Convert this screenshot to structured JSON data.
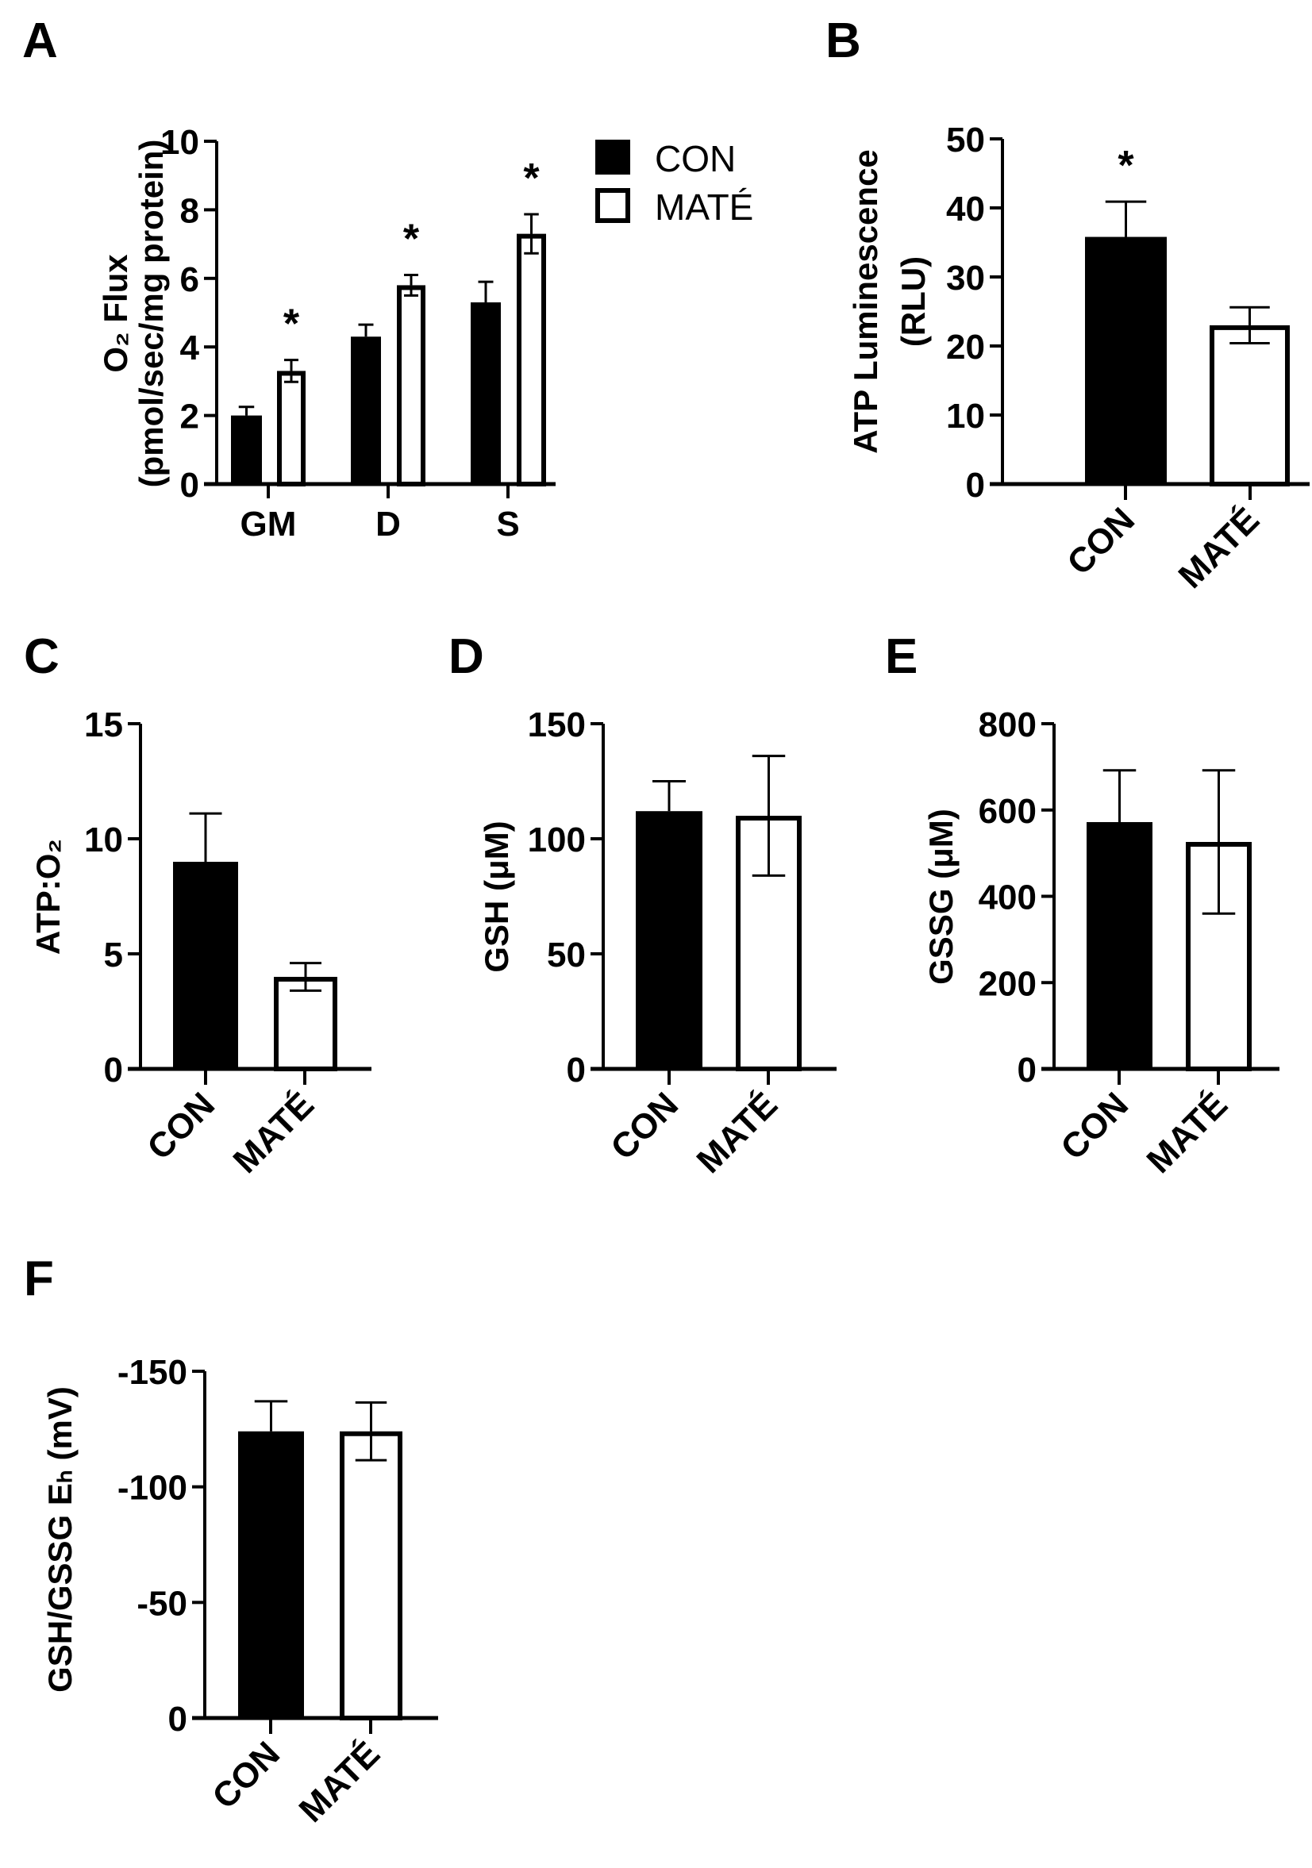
{
  "figure": {
    "legend": {
      "items": [
        {
          "label": "CON",
          "fill": "#000000"
        },
        {
          "label": "MATÉ",
          "fill": "#ffffff"
        }
      ]
    },
    "colors": {
      "con": "#000000",
      "mate": "#ffffff",
      "stroke": "#000000"
    }
  },
  "chart_data": [
    {
      "id": "A",
      "panel_label": "A",
      "type": "bar",
      "title": "",
      "ylabel_lines": [
        "O₂ Flux",
        "(pmol/sec/mg protein)"
      ],
      "xlabel": "",
      "categories": [
        "GM",
        "D",
        "S"
      ],
      "ylim": [
        0,
        10
      ],
      "yticks": [
        0,
        2,
        4,
        6,
        8,
        10
      ],
      "ytick_labels": [
        "0",
        "2",
        "4",
        "6",
        "8",
        "10"
      ],
      "legend_position": "upper right",
      "grid": false,
      "series": [
        {
          "name": "CON",
          "values": [
            2.0,
            4.3,
            5.3
          ],
          "error": [
            0.25,
            0.35,
            0.6
          ],
          "significant": [
            false,
            false,
            false
          ]
        },
        {
          "name": "MATÉ",
          "values": [
            3.3,
            5.8,
            7.3
          ],
          "error": [
            0.32,
            0.3,
            0.57
          ],
          "significant": [
            true,
            true,
            true
          ]
        }
      ],
      "annotations": [
        "*",
        "*",
        "*"
      ]
    },
    {
      "id": "B",
      "panel_label": "B",
      "type": "bar",
      "title": "",
      "ylabel_lines": [
        "ATP Luminescence",
        "(RLU)"
      ],
      "categories": [
        "CON",
        "MATÉ"
      ],
      "ylim": [
        0,
        50
      ],
      "yticks": [
        0,
        10,
        20,
        30,
        40,
        50
      ],
      "ytick_labels": [
        "0",
        "10",
        "20",
        "30",
        "40",
        "50"
      ],
      "grid": false,
      "values": [
        35.8,
        23.0
      ],
      "error": [
        5.1,
        2.6
      ],
      "significant": [
        true,
        false
      ],
      "annotations": [
        "*"
      ]
    },
    {
      "id": "C",
      "panel_label": "C",
      "type": "bar",
      "title": "",
      "ylabel_lines": [
        "ATP:O₂"
      ],
      "categories": [
        "CON",
        "MATÉ"
      ],
      "ylim": [
        0,
        15
      ],
      "yticks": [
        0,
        5,
        10,
        15
      ],
      "ytick_labels": [
        "0",
        "5",
        "10",
        "15"
      ],
      "grid": false,
      "values": [
        9.0,
        4.0
      ],
      "error": [
        2.1,
        0.6
      ],
      "significant": [
        false,
        false
      ]
    },
    {
      "id": "D",
      "panel_label": "D",
      "type": "bar",
      "title": "",
      "ylabel_lines": [
        "GSH (μM)"
      ],
      "categories": [
        "CON",
        "MATÉ"
      ],
      "ylim": [
        0,
        150
      ],
      "yticks": [
        0,
        50,
        100,
        150
      ],
      "ytick_labels": [
        "0",
        "50",
        "100",
        "150"
      ],
      "grid": false,
      "values": [
        112,
        110
      ],
      "error": [
        13,
        26
      ],
      "significant": [
        false,
        false
      ]
    },
    {
      "id": "E",
      "panel_label": "E",
      "type": "bar",
      "title": "",
      "ylabel_lines": [
        "GSSG (μM)"
      ],
      "categories": [
        "CON",
        "MATÉ"
      ],
      "ylim": [
        0,
        800
      ],
      "yticks": [
        0,
        200,
        400,
        600,
        800
      ],
      "ytick_labels": [
        "0",
        "200",
        "400",
        "600",
        "800"
      ],
      "grid": false,
      "values": [
        572,
        526
      ],
      "error": [
        120,
        166
      ],
      "significant": [
        false,
        false
      ]
    },
    {
      "id": "F",
      "panel_label": "F",
      "type": "bar",
      "title": "",
      "ylabel_lines": [
        "GSH/GSSG Eₕ (mV)"
      ],
      "categories": [
        "CON",
        "MATÉ"
      ],
      "ylim": [
        0,
        -150
      ],
      "yticks": [
        0,
        -50,
        -100,
        -150
      ],
      "ytick_labels": [
        "0",
        "-50",
        "-100",
        "-150"
      ],
      "grid": false,
      "values": [
        -124,
        -124
      ],
      "error": [
        13,
        12.5
      ],
      "significant": [
        false,
        false
      ]
    }
  ]
}
